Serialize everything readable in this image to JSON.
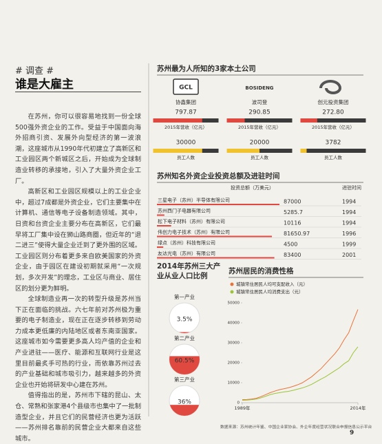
{
  "header": {
    "tag": "# 调查 #",
    "title": "谁是大雇主"
  },
  "article": {
    "paragraphs": [
      "在苏州，你可以很容易地找到一份全球500强外资企业的工作。受益于中国面向海外招商引资、发展外向型经济的第一波浪潮，这座城市从1990年代初建立了高新区和工业园区两个新城区之后，开始成为全球制造业转移的承接地，引入了大量外资企业工厂。",
      "高新区和工业园区规模以上的工业企业中，超过7成都是外资企业，它们主要集中在计算机、通信等电子设备制造领域。其中，日资和台资企业主要分布在高新区，它们最早将工厂集中设在狮山路商圈，但近年的“退二进三”使得大量企业迁到了更外围的区域。工业园区则分布着更多来自欧美国家的外资企业，由于园区在建设初期就采用“一次规划，多次开发”的理念，工业区与商业、居住区的划分更为鲜明。",
      "全球制造业再一次的转型升级是苏州当下正在面临的挑战。六七年前对苏州极为重要的电子制造业，现在正在逐步转移到劳动力成本更低廉的内陆地区或者东南亚国家。这座城市如今需要更多高人均产值的企业和产业进驻——医疗、能源和互联网行业是这里目前最炙手可热的行业，而依靠苏州过去的产业基础和城市吸引力，越来越多的外资企业也开始将研发中心建在苏州。",
      "值得指出的是，苏州市下辖的昆山、太仓、常熟和张家港4个县级市也集中了一批制造型企业，并且它们的民营经济也更为活跃——苏州排名靠前的民营企业大都来自这些城市。"
    ]
  },
  "companies": {
    "title": "苏州最为人所知的3家本土公司",
    "logos": {
      "gcl": "GCL",
      "bosideng": "BOSIDENG"
    },
    "names": [
      "协鑫集团",
      "波司登",
      "创元投资集团"
    ],
    "revenue": {
      "label": "2015年营收（亿元）",
      "values": [
        797.87,
        290.85,
        272.8
      ],
      "value_labels": [
        "797.87",
        "290.85",
        "272.80"
      ]
    },
    "employees": {
      "label": "员工人数",
      "values": [
        30000,
        20000,
        3782
      ]
    }
  },
  "investment": {
    "title": "苏州知名外资企业投资总额及进驻时间",
    "value_header": "投资总额（万美元）",
    "year_header": "进驻时间",
    "companies": [
      "三星电子（苏州）半导体有限公司",
      "苏州西门子电器有限公司",
      "松下电子材料（苏州）有限公司",
      "伟创力电子技术（苏州）有限公司",
      "绿点（苏州）科技有限公司",
      "友达光电（苏州）有限公司"
    ],
    "values": [
      87000,
      5285.7,
      10116,
      81650.97,
      4500,
      83400
    ],
    "years": [
      1994,
      1994,
      1994,
      1996,
      1999,
      2001
    ]
  },
  "industry": {
    "title": "2014年苏州三大产业从业人口比例",
    "categories": [
      "第一产业",
      "第二产业",
      "第三产业"
    ],
    "values": [
      3.5,
      60.5,
      36
    ],
    "value_labels": [
      "3.5%",
      "60.5%",
      "36%"
    ]
  },
  "chart_data": {
    "type": "line",
    "title": "苏州居民的消费性格",
    "x": [
      1989,
      1990,
      1991,
      1992,
      1993,
      1994,
      1995,
      1996,
      1997,
      1998,
      1999,
      2000,
      2001,
      2002,
      2003,
      2004,
      2005,
      2006,
      2007,
      2008,
      2009,
      2010,
      2011,
      2012,
      2013,
      2014
    ],
    "series": [
      {
        "name": "城镇常住居民人均可支配收入（元）",
        "color": "#e8743b",
        "values": [
          1500,
          1600,
          1800,
          2200,
          3000,
          4000,
          5000,
          5800,
          6500,
          7000,
          7500,
          8200,
          9000,
          10000,
          11500,
          13000,
          15000,
          17000,
          19500,
          22000,
          24500,
          27500,
          31500,
          35000,
          41000,
          46700
        ]
      },
      {
        "name": "城镇常住居民人均消费支出（元）",
        "color": "#9bc43a",
        "values": [
          1200,
          1300,
          1500,
          1800,
          2400,
          3200,
          4000,
          4600,
          5000,
          5400,
          5700,
          6200,
          6800,
          7400,
          8200,
          9200,
          10500,
          11800,
          13000,
          14500,
          16000,
          17500,
          19500,
          21000,
          25000,
          28000
        ]
      }
    ],
    "xlim": [
      1989,
      2014
    ],
    "xticks": [
      {
        "value": 1989,
        "label": "1989年"
      },
      {
        "value": 2014,
        "label": "2014年"
      }
    ],
    "ylim": [
      0,
      50000
    ],
    "yticks": [
      0,
      10000,
      20000,
      30000,
      40000,
      50000
    ],
    "grid": false
  },
  "source": "数据来源：苏州统计年鉴、中国企业家协会、外企年度经营状况联合申报信息公示平台",
  "page_number": "9"
}
